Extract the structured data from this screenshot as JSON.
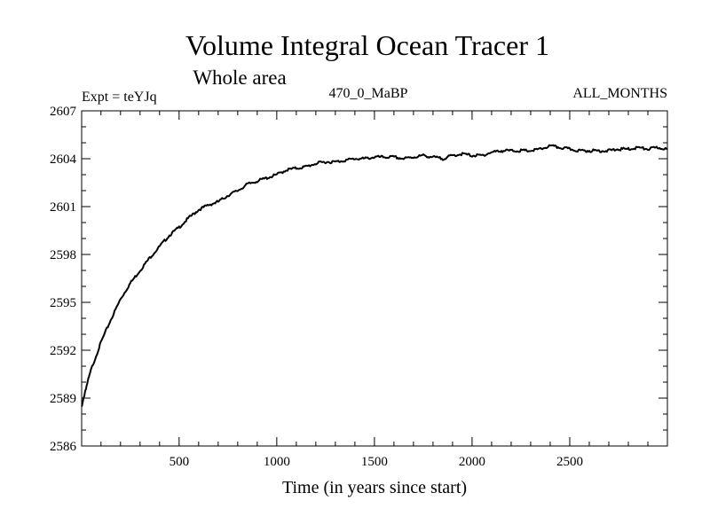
{
  "chart_data": {
    "type": "line",
    "title": "Volume Integral Ocean Tracer 1",
    "subtitle": "Whole area",
    "experiment_label": "Expt = teYJq",
    "run_label": "470_0_MaBP",
    "months_label": "ALL_MONTHS",
    "xlabel": "Time (in years since start)",
    "ylabel": "",
    "xlim": [
      1,
      3000
    ],
    "ylim": [
      2586,
      2607
    ],
    "x_ticks": [
      500,
      1000,
      1500,
      2000,
      2500
    ],
    "y_ticks": [
      2586,
      2589,
      2592,
      2595,
      2598,
      2601,
      2604,
      2607
    ],
    "x_minor_step": 100,
    "y_minor_step": 1,
    "grid": false,
    "series": [
      {
        "name": "Volume integral ocean tracer 1",
        "color": "#000000",
        "x": [
          1,
          20,
          50,
          100,
          150,
          200,
          250,
          300,
          350,
          400,
          450,
          500,
          550,
          600,
          650,
          700,
          750,
          800,
          850,
          900,
          950,
          1000,
          1050,
          1100,
          1150,
          1200,
          1250,
          1300,
          1350,
          1400,
          1450,
          1500,
          1550,
          1600,
          1650,
          1700,
          1750,
          1800,
          1850,
          1900,
          1950,
          2000,
          2050,
          2100,
          2150,
          2200,
          2250,
          2300,
          2350,
          2400,
          2450,
          2500,
          2550,
          2600,
          2650,
          2700,
          2750,
          2800,
          2850,
          2900,
          2950,
          3000
        ],
        "values": [
          2588.4,
          2589.5,
          2590.8,
          2592.5,
          2593.9,
          2595.2,
          2596.2,
          2597.0,
          2597.8,
          2598.5,
          2599.2,
          2599.7,
          2600.3,
          2600.8,
          2601.1,
          2601.3,
          2601.7,
          2602.0,
          2602.4,
          2602.6,
          2602.8,
          2603.0,
          2603.3,
          2603.4,
          2603.5,
          2603.7,
          2603.8,
          2603.8,
          2603.9,
          2604.0,
          2604.0,
          2604.1,
          2604.1,
          2604.1,
          2604.0,
          2604.1,
          2604.2,
          2604.1,
          2604.0,
          2604.2,
          2604.3,
          2604.2,
          2604.2,
          2604.4,
          2604.5,
          2604.5,
          2604.5,
          2604.5,
          2604.6,
          2604.8,
          2604.7,
          2604.6,
          2604.5,
          2604.5,
          2604.5,
          2604.5,
          2604.6,
          2604.6,
          2604.7,
          2604.6,
          2604.7,
          2604.6
        ]
      }
    ]
  }
}
